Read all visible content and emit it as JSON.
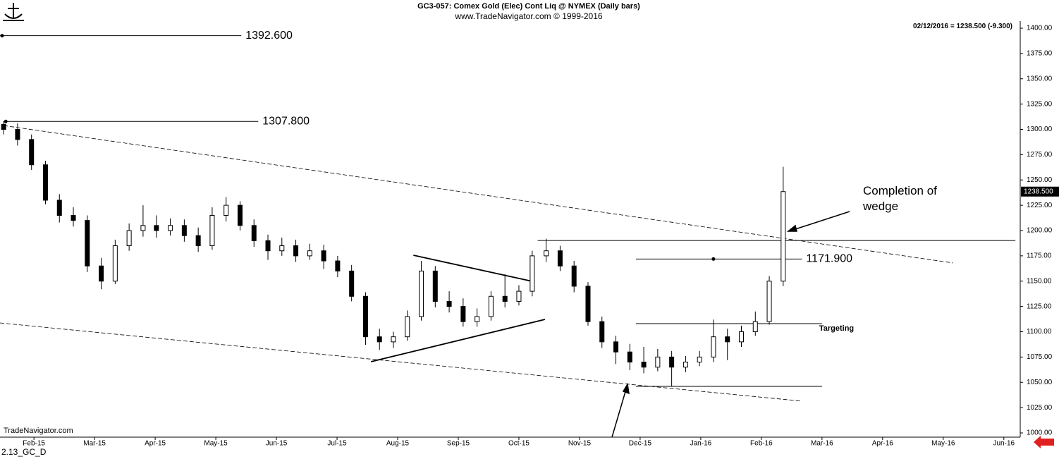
{
  "chart_data": {
    "type": "candlestick",
    "title": "GC3-057:  Comex Gold (Elec) Cont Liq @ NYMEX  (Daily bars)",
    "subtitle": "www.TradeNavigator.com © 1999-2016",
    "info": "02/12/2016 = 1238.500 (-9.300)",
    "watermark": "TradeNavigator.com",
    "footer": "2.13_GC_D",
    "x": [
      -0.5,
      -0.27,
      -0.04,
      0.19,
      0.42,
      0.65,
      0.88,
      1.11,
      1.34,
      1.57,
      1.8,
      2.02,
      2.25,
      2.48,
      2.71,
      2.94,
      3.17,
      3.4,
      3.63,
      3.86,
      4.09,
      4.32,
      4.55,
      4.78,
      5.01,
      5.24,
      5.47,
      5.7,
      5.93,
      6.16,
      6.39,
      6.62,
      6.85,
      7.08,
      7.31,
      7.54,
      7.77,
      8.0,
      8.22,
      8.45,
      8.68,
      8.91,
      9.14,
      9.37,
      9.6,
      9.83,
      10.06,
      10.29,
      10.52,
      10.75,
      10.98,
      11.21,
      11.44,
      11.67,
      11.9,
      12.13,
      12.36
    ],
    "open": [
      1305,
      1300,
      1290,
      1265,
      1230,
      1215,
      1210,
      1165,
      1150,
      1185,
      1200,
      1205,
      1200,
      1205,
      1195,
      1185,
      1215,
      1225,
      1205,
      1190,
      1180,
      1185,
      1175,
      1180,
      1170,
      1160,
      1135,
      1095,
      1090,
      1095,
      1115,
      1160,
      1130,
      1125,
      1110,
      1115,
      1135,
      1130,
      1140,
      1175,
      1180,
      1165,
      1145,
      1110,
      1090,
      1080,
      1070,
      1065,
      1075,
      1065,
      1070,
      1075,
      1095,
      1090,
      1100,
      1110,
      1150
    ],
    "high": [
      1308,
      1306,
      1295,
      1269,
      1236,
      1223,
      1215,
      1173,
      1191,
      1207,
      1225,
      1215,
      1212,
      1211,
      1203,
      1223,
      1233,
      1229,
      1211,
      1196,
      1193,
      1191,
      1187,
      1186,
      1175,
      1166,
      1139,
      1103,
      1100,
      1121,
      1170,
      1165,
      1140,
      1133,
      1123,
      1140,
      1157,
      1146,
      1180,
      1192,
      1185,
      1170,
      1149,
      1115,
      1096,
      1088,
      1085,
      1083,
      1081,
      1076,
      1081,
      1112,
      1103,
      1106,
      1120,
      1155,
      1263
    ],
    "low": [
      1295,
      1284,
      1260,
      1226,
      1208,
      1204,
      1159,
      1142,
      1147,
      1180,
      1194,
      1193,
      1195,
      1189,
      1179,
      1181,
      1209,
      1200,
      1184,
      1171,
      1175,
      1169,
      1171,
      1162,
      1154,
      1130,
      1087,
      1082,
      1084,
      1091,
      1111,
      1124,
      1119,
      1105,
      1105,
      1111,
      1124,
      1126,
      1135,
      1169,
      1160,
      1139,
      1106,
      1084,
      1068,
      1062,
      1059,
      1061,
      1046,
      1060,
      1066,
      1070,
      1072,
      1085,
      1096,
      1107,
      1145
    ],
    "close": [
      1300,
      1290,
      1265,
      1230,
      1215,
      1210,
      1165,
      1150,
      1185,
      1200,
      1205,
      1200,
      1205,
      1195,
      1185,
      1215,
      1225,
      1205,
      1190,
      1180,
      1185,
      1175,
      1180,
      1170,
      1160,
      1135,
      1095,
      1090,
      1095,
      1115,
      1160,
      1130,
      1125,
      1110,
      1115,
      1135,
      1130,
      1140,
      1175,
      1180,
      1165,
      1145,
      1110,
      1090,
      1080,
      1070,
      1065,
      1075,
      1065,
      1070,
      1075,
      1095,
      1090,
      1100,
      1110,
      1150,
      1238.5
    ],
    "last": {
      "value": 1238.5,
      "label": "1238.500"
    },
    "xlim": [
      -0.56,
      16.27
    ],
    "ylim": [
      1000,
      1400
    ],
    "xticks": [
      {
        "value": 0,
        "label": "Feb-15"
      },
      {
        "value": 1,
        "label": "Mar-15"
      },
      {
        "value": 2,
        "label": "Apr-15"
      },
      {
        "value": 3,
        "label": "May-15"
      },
      {
        "value": 4,
        "label": "Jun-15"
      },
      {
        "value": 5,
        "label": "Jul-15"
      },
      {
        "value": 6,
        "label": "Aug-15"
      },
      {
        "value": 7,
        "label": "Sep-15"
      },
      {
        "value": 8,
        "label": "Oct-15"
      },
      {
        "value": 9,
        "label": "Nov-15"
      },
      {
        "value": 10,
        "label": "Dec-15"
      },
      {
        "value": 11,
        "label": "Jan-16"
      },
      {
        "value": 12,
        "label": "Feb-16"
      },
      {
        "value": 13,
        "label": "Mar-16"
      },
      {
        "value": 14,
        "label": "Apr-16"
      },
      {
        "value": 15,
        "label": "May-16"
      },
      {
        "value": 16,
        "label": "Jun-16"
      }
    ],
    "yticks": [
      {
        "value": 1000,
        "label": "1000.00"
      },
      {
        "value": 1025,
        "label": "1025.00"
      },
      {
        "value": 1050,
        "label": "1050.00"
      },
      {
        "value": 1075,
        "label": "1075.00"
      },
      {
        "value": 1100,
        "label": "1100.00"
      },
      {
        "value": 1125,
        "label": "1125.00"
      },
      {
        "value": 1150,
        "label": "1150.00"
      },
      {
        "value": 1175,
        "label": "1175.00"
      },
      {
        "value": 1200,
        "label": "1200.00"
      },
      {
        "value": 1225,
        "label": "1225.00"
      },
      {
        "value": 1250,
        "label": "1250.00"
      },
      {
        "value": 1275,
        "label": "1275.00"
      },
      {
        "value": 1300,
        "label": "1300.00"
      },
      {
        "value": 1325,
        "label": "1325.00"
      },
      {
        "value": 1350,
        "label": "1350.00"
      },
      {
        "value": 1375,
        "label": "1375.00"
      },
      {
        "value": 1400,
        "label": "1400.00"
      }
    ],
    "levels": [
      {
        "value": 1392.6,
        "label": "1392.600",
        "x": [
          -0.56,
          3.42
        ]
      },
      {
        "value": 1307.8,
        "label": "1307.800",
        "x": [
          -0.5,
          3.7
        ]
      },
      {
        "value": 1171.9,
        "label": "1171.900",
        "x": [
          9.93,
          12.67
        ]
      },
      {
        "value": 1108,
        "label": "Targeting",
        "x": [
          9.93,
          13.0
        ]
      }
    ],
    "trendlines": [
      {
        "x": [
          -0.5,
          15.16
        ],
        "y": [
          1303.8,
          1168
        ],
        "dashed": true
      },
      {
        "x": [
          -0.56,
          12.67
        ],
        "y": [
          1108.7,
          1031.4
        ],
        "dashed": true
      },
      {
        "x": [
          6.26,
          8.22
        ],
        "y": [
          1175.6,
          1149.8
        ],
        "dashed": false
      },
      {
        "x": [
          5.56,
          8.43
        ],
        "y": [
          1070.4,
          1112.2
        ],
        "dashed": false
      },
      {
        "x": [
          8.31,
          16.19
        ],
        "y": [
          1190.2,
          1190.2
        ],
        "dashed": false
      },
      {
        "x": [
          9.93,
          13.0
        ],
        "y": [
          1046,
          1046
        ],
        "dashed": false
      }
    ],
    "annotation": "Completion of\nwedge"
  }
}
